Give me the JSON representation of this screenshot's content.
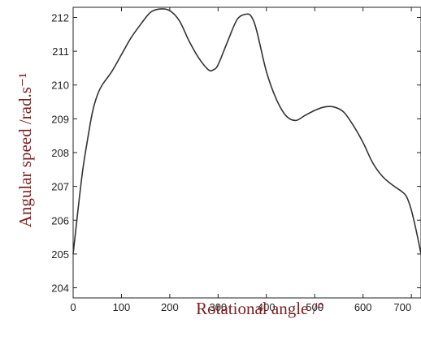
{
  "chart_data": {
    "type": "line",
    "title": "",
    "xlabel": "Rotational angle /°",
    "ylabel": "Angular speed /rad.s⁻¹",
    "xlim": [
      0,
      720
    ],
    "ylim": [
      203.7,
      212.3
    ],
    "xticks": [
      0,
      100,
      200,
      300,
      400,
      500,
      600,
      700
    ],
    "yticks": [
      204,
      205,
      206,
      207,
      208,
      209,
      210,
      211,
      212
    ],
    "grid": false,
    "legend": "none",
    "line_color": "#333333",
    "series": [
      {
        "x": [
          0,
          10,
          20,
          30,
          40,
          50,
          60,
          80,
          100,
          120,
          140,
          160,
          180,
          200,
          220,
          240,
          260,
          280,
          290,
          300,
          320,
          340,
          360,
          370,
          380,
          400,
          420,
          440,
          460,
          480,
          500,
          520,
          540,
          560,
          580,
          600,
          620,
          640,
          660,
          680,
          690,
          700,
          710,
          720
        ],
        "y": [
          205.0,
          206.3,
          207.5,
          208.4,
          209.2,
          209.7,
          210.0,
          210.4,
          210.9,
          211.4,
          211.8,
          212.15,
          212.25,
          212.2,
          211.9,
          211.3,
          210.8,
          210.45,
          210.45,
          210.6,
          211.3,
          211.95,
          212.1,
          212.0,
          211.6,
          210.4,
          209.6,
          209.1,
          208.95,
          209.1,
          209.25,
          209.35,
          209.35,
          209.2,
          208.8,
          208.3,
          207.7,
          207.3,
          207.05,
          206.85,
          206.7,
          206.3,
          205.7,
          205.0
        ]
      }
    ]
  }
}
